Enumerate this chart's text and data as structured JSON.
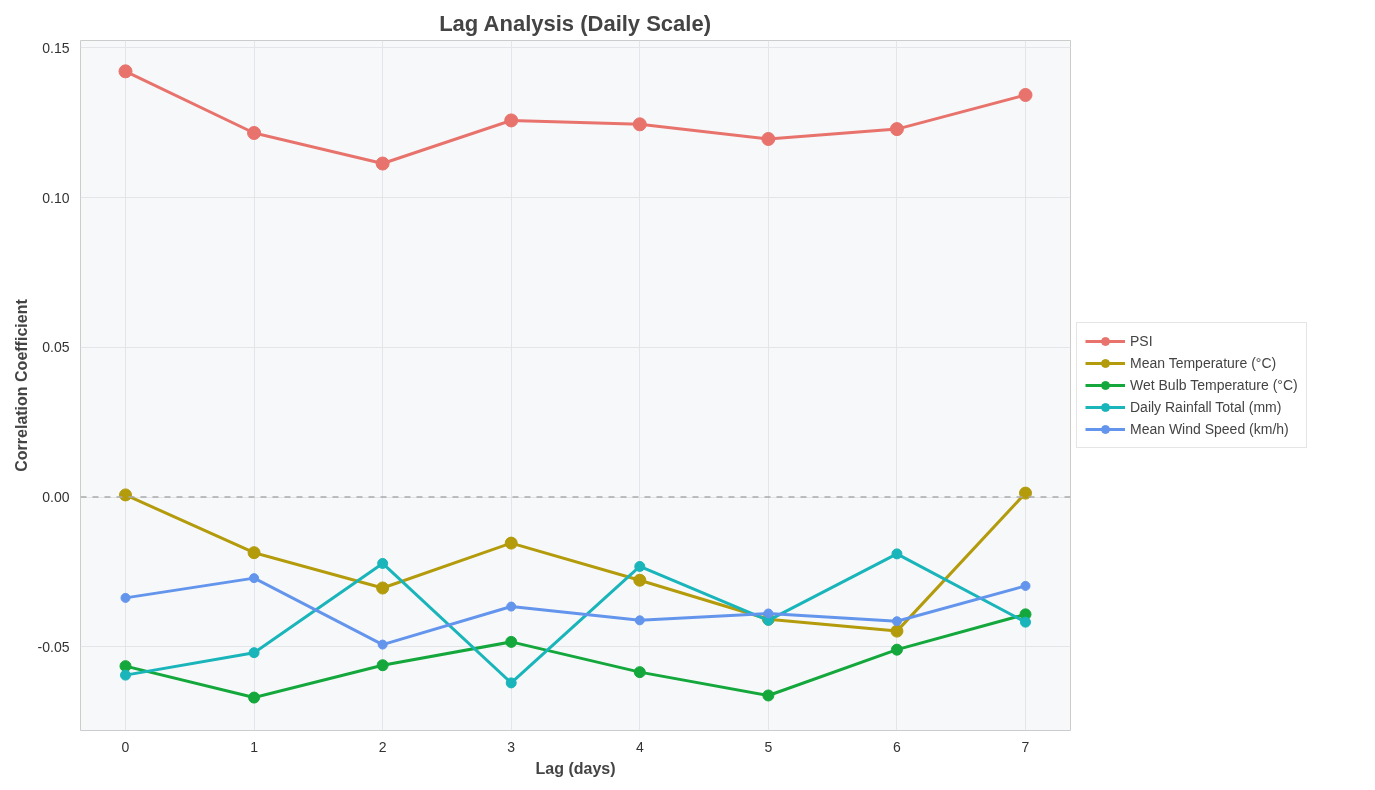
{
  "chart_data": {
    "type": "line",
    "title": "Lag Analysis (Daily Scale)",
    "xlabel": "Lag (days)",
    "ylabel": "Correlation Coefficient",
    "x": [
      0,
      1,
      2,
      3,
      4,
      5,
      6,
      7
    ],
    "series": [
      {
        "name": "PSI",
        "color": "#e8736c",
        "values": [
          0.1422,
          0.1216,
          0.1114,
          0.1258,
          0.1245,
          0.1196,
          0.1229,
          0.1343
        ]
      },
      {
        "name": "Mean Temperature (°C)",
        "color": "#b39b0b",
        "values": [
          0.0007,
          -0.0186,
          -0.0304,
          -0.0154,
          -0.0278,
          -0.0408,
          -0.0448,
          0.0013
        ]
      },
      {
        "name": "Wet Bulb Temperature (°C)",
        "color": "#14a83c",
        "values": [
          -0.0565,
          -0.067,
          -0.0562,
          -0.0484,
          -0.0585,
          -0.0663,
          -0.051,
          -0.0392
        ]
      },
      {
        "name": "Daily Rainfall Total (mm)",
        "color": "#19b5ba",
        "values": [
          -0.0595,
          -0.052,
          -0.0222,
          -0.0621,
          -0.0232,
          -0.0412,
          -0.019,
          -0.0418
        ]
      },
      {
        "name": "Mean Wind Speed (km/h)",
        "color": "#6495ed",
        "values": [
          -0.0337,
          -0.0271,
          -0.0493,
          -0.0366,
          -0.0412,
          -0.0389,
          -0.0415,
          -0.0297
        ]
      }
    ],
    "xlim": [
      -0.35,
      7.35
    ],
    "ylim": [
      -0.078,
      0.1525
    ],
    "xticks": [
      0,
      1,
      2,
      3,
      4,
      5,
      6,
      7
    ],
    "yticks": [
      {
        "value": -0.05,
        "label": "-0.05"
      },
      {
        "value": 0,
        "label": "0.00"
      },
      0.05,
      {
        "value": 0.1,
        "label": "0.10"
      },
      0.15
    ],
    "ref_lines": [
      {
        "axis": "y",
        "value": 0,
        "color": "#aaaaaa",
        "line_style": "dashed"
      }
    ],
    "grid": true,
    "legend": "right",
    "marker": "circle",
    "line_style": "solid"
  }
}
